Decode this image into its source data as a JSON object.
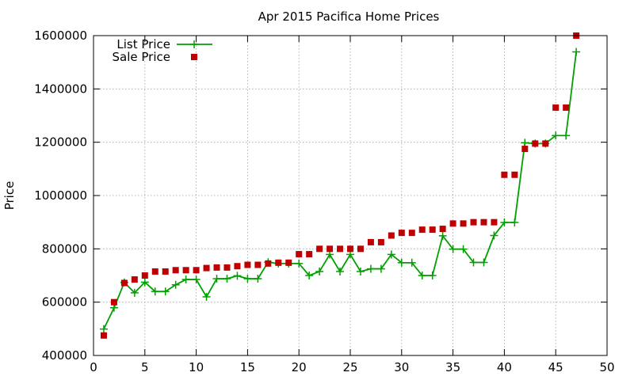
{
  "chart_data": {
    "type": "line",
    "title": "Apr 2015 Pacifica Home Prices",
    "xlabel": "",
    "ylabel": "Price",
    "xlim": [
      0,
      50
    ],
    "ylim": [
      400000,
      1600000
    ],
    "xticks": [
      0,
      5,
      10,
      15,
      20,
      25,
      30,
      35,
      40,
      45,
      50
    ],
    "yticks": [
      400000,
      600000,
      800000,
      1000000,
      1200000,
      1400000,
      1600000
    ],
    "grid": true,
    "legend_position": "top-left",
    "series": [
      {
        "name": "List Price",
        "style": "linespoints",
        "marker": "plus",
        "color": "#00a000",
        "x": [
          1,
          2,
          3,
          4,
          5,
          6,
          7,
          8,
          9,
          10,
          11,
          12,
          13,
          14,
          15,
          16,
          17,
          18,
          19,
          20,
          21,
          22,
          23,
          24,
          25,
          26,
          27,
          28,
          29,
          30,
          31,
          32,
          33,
          34,
          35,
          36,
          37,
          38,
          39,
          40,
          41,
          42,
          43,
          44,
          45,
          46,
          47
        ],
        "values": [
          499000,
          579000,
          674000,
          635000,
          675000,
          640000,
          640000,
          665000,
          685000,
          685000,
          620000,
          688000,
          688000,
          699000,
          688000,
          688000,
          750000,
          745000,
          745000,
          745000,
          700000,
          715000,
          779000,
          715000,
          779000,
          715000,
          725000,
          725000,
          779000,
          748000,
          748000,
          700000,
          700000,
          849000,
          799000,
          799000,
          749000,
          749000,
          850000,
          899000,
          899000,
          1198000,
          1195000,
          1195000,
          1225000,
          1225000,
          1539000
        ]
      },
      {
        "name": "Sale Price",
        "style": "points",
        "marker": "square",
        "color": "#c00000",
        "x": [
          1,
          2,
          3,
          4,
          5,
          6,
          7,
          8,
          9,
          10,
          11,
          12,
          13,
          14,
          15,
          16,
          17,
          18,
          19,
          20,
          21,
          22,
          23,
          24,
          25,
          26,
          27,
          28,
          29,
          30,
          31,
          32,
          33,
          34,
          35,
          36,
          37,
          38,
          39,
          40,
          41,
          42,
          43,
          44,
          45,
          46,
          47
        ],
        "values": [
          475000,
          600000,
          672000,
          685000,
          700000,
          715000,
          715000,
          720000,
          720000,
          720000,
          728000,
          730000,
          730000,
          735000,
          740000,
          740000,
          745000,
          748000,
          748000,
          780000,
          780000,
          800000,
          800000,
          800000,
          800000,
          800000,
          825000,
          825000,
          850000,
          860000,
          860000,
          872000,
          872000,
          875000,
          895000,
          895000,
          900000,
          900000,
          900000,
          1078000,
          1078000,
          1175000,
          1195000,
          1195000,
          1330000,
          1330000,
          1600000
        ]
      }
    ]
  }
}
